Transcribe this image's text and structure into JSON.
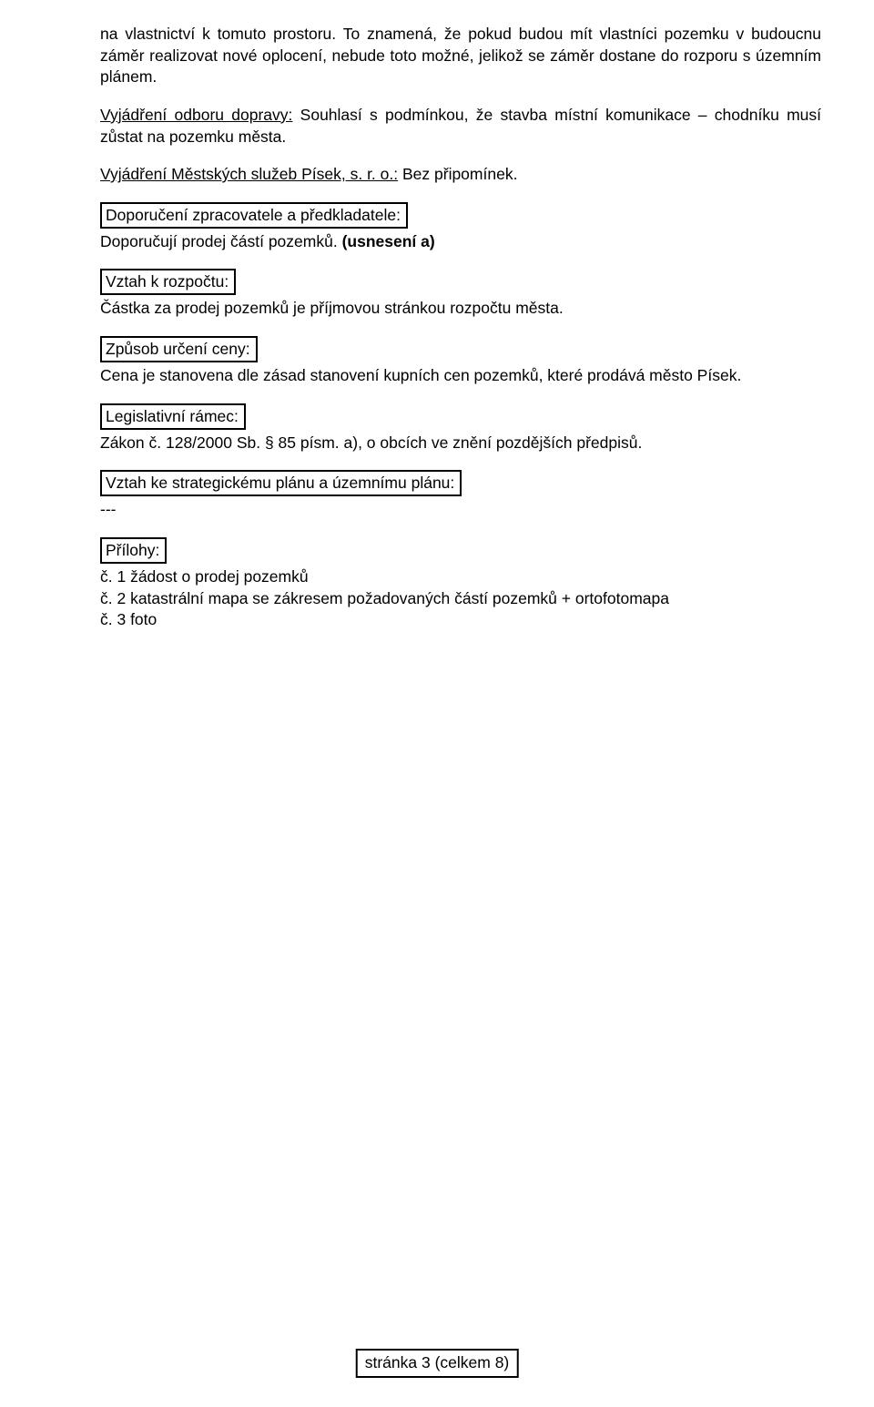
{
  "intro": {
    "para1": "na vlastnictví k tomuto prostoru. To znamená, že pokud budou mít vlastníci pozemku v budoucnu záměr realizovat nové oplocení, nebude toto možné, jelikož se záměr dostane do rozporu s územním plánem.",
    "para2_prefix": "Vyjádření odboru dopravy:",
    "para2_rest": " Souhlasí s podmínkou, že stavba místní komunikace – chodníku musí zůstat na pozemku města.",
    "para3_prefix": "Vyjádření Městských služeb Písek, s. r. o.:",
    "para3_rest": " Bez připomínek."
  },
  "sections": {
    "doporuceni": {
      "heading": "Doporučení zpracovatele a předkladatele:",
      "text_a": "Doporučují prodej částí pozemků. ",
      "text_b": "(usnesení a)"
    },
    "rozpocet": {
      "heading": "Vztah k rozpočtu:",
      "text": "Částka za prodej pozemků je příjmovou stránkou rozpočtu města."
    },
    "cena": {
      "heading": "Způsob určení ceny:",
      "text": "Cena je stanovena dle zásad stanovení kupních cen pozemků, které prodává město Písek."
    },
    "legis": {
      "heading": "Legislativní rámec:",
      "text": "Zákon č. 128/2000 Sb. § 85 písm. a), o obcích ve znění pozdějších předpisů."
    },
    "strateg": {
      "heading": "Vztah ke strategickému plánu a územnímu plánu:",
      "text": "---"
    },
    "prilohy": {
      "heading": "Přílohy:",
      "line1": "č. 1 žádost o prodej pozemků",
      "line2": "č. 2 katastrální mapa se zákresem požadovaných částí pozemků + ortofotomapa",
      "line3": "č. 3 foto"
    }
  },
  "footer": {
    "text": "stránka 3 (celkem 8)"
  }
}
